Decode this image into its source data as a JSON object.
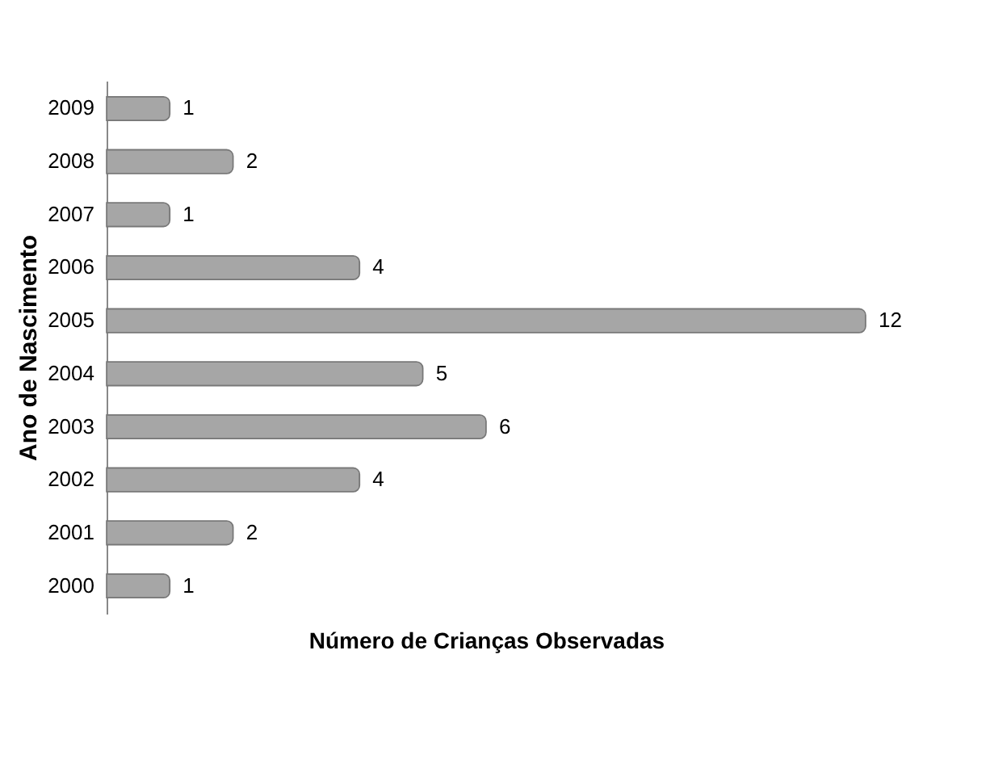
{
  "chart_data": {
    "type": "bar",
    "orientation": "horizontal",
    "xlabel": "Número de Crianças Observadas",
    "ylabel": "Ano de Nascimento",
    "categories": [
      "2009",
      "2008",
      "2007",
      "2006",
      "2005",
      "2004",
      "2003",
      "2002",
      "2001",
      "2000"
    ],
    "values": [
      1,
      2,
      1,
      4,
      12,
      5,
      6,
      4,
      2,
      1
    ],
    "color": "#a6a6a6",
    "data_labels": true
  }
}
